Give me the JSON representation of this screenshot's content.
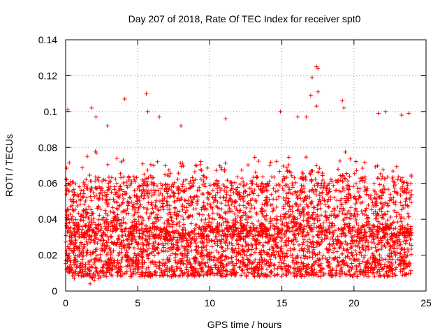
{
  "chart_data": {
    "type": "scatter",
    "title": "Day 207 of 2018, Rate Of TEC Index for receiver spt0",
    "xlabel": "GPS time / hours",
    "ylabel": "ROTI / TECUs",
    "xlim": [
      0,
      25
    ],
    "ylim": [
      0,
      0.14
    ],
    "xticks": [
      0,
      5,
      10,
      15,
      20,
      25
    ],
    "xtick_labels": [
      "0",
      "5",
      "10",
      "15",
      "20",
      "25"
    ],
    "yticks": [
      0,
      0.02,
      0.04,
      0.06,
      0.08,
      0.1,
      0.12,
      0.14
    ],
    "ytick_labels": [
      "0",
      "0.02",
      "0.04",
      "0.06",
      "0.08",
      "0.1",
      "0.12",
      "0.14"
    ],
    "grid": true,
    "marker": "plus",
    "marker_color": "#ff0000",
    "series": [
      {
        "name": "ROTI",
        "x_range": [
          0,
          24
        ],
        "notable_points": [
          {
            "x": 0.15,
            "y": 0.101
          },
          {
            "x": 1.8,
            "y": 0.102
          },
          {
            "x": 2.1,
            "y": 0.097
          },
          {
            "x": 2.9,
            "y": 0.092
          },
          {
            "x": 4.1,
            "y": 0.107
          },
          {
            "x": 5.6,
            "y": 0.11
          },
          {
            "x": 5.7,
            "y": 0.1
          },
          {
            "x": 6.5,
            "y": 0.097
          },
          {
            "x": 8.0,
            "y": 0.092
          },
          {
            "x": 11.1,
            "y": 0.096
          },
          {
            "x": 14.9,
            "y": 0.1
          },
          {
            "x": 16.1,
            "y": 0.097
          },
          {
            "x": 16.7,
            "y": 0.097
          },
          {
            "x": 17.0,
            "y": 0.109
          },
          {
            "x": 17.1,
            "y": 0.119
          },
          {
            "x": 17.4,
            "y": 0.125
          },
          {
            "x": 17.5,
            "y": 0.124
          },
          {
            "x": 17.5,
            "y": 0.111
          },
          {
            "x": 17.4,
            "y": 0.103
          },
          {
            "x": 19.2,
            "y": 0.106
          },
          {
            "x": 19.3,
            "y": 0.102
          },
          {
            "x": 21.7,
            "y": 0.099
          },
          {
            "x": 22.2,
            "y": 0.1
          },
          {
            "x": 23.3,
            "y": 0.098
          },
          {
            "x": 23.8,
            "y": 0.099
          },
          {
            "x": 1.7,
            "y": 0.004
          },
          {
            "x": 0.6,
            "y": 0.007
          }
        ],
        "profile": [
          {
            "x": 0,
            "low": 0.009,
            "mid": 0.03,
            "high": 0.075
          },
          {
            "x": 1,
            "low": 0.008,
            "mid": 0.03,
            "high": 0.07
          },
          {
            "x": 2,
            "low": 0.006,
            "mid": 0.03,
            "high": 0.08
          },
          {
            "x": 3,
            "low": 0.008,
            "mid": 0.03,
            "high": 0.075
          },
          {
            "x": 4,
            "low": 0.008,
            "mid": 0.03,
            "high": 0.075
          },
          {
            "x": 5,
            "low": 0.008,
            "mid": 0.03,
            "high": 0.075
          },
          {
            "x": 6,
            "low": 0.008,
            "mid": 0.03,
            "high": 0.075
          },
          {
            "x": 7,
            "low": 0.008,
            "mid": 0.028,
            "high": 0.07
          },
          {
            "x": 8,
            "low": 0.008,
            "mid": 0.028,
            "high": 0.075
          },
          {
            "x": 9,
            "low": 0.008,
            "mid": 0.028,
            "high": 0.075
          },
          {
            "x": 10,
            "low": 0.009,
            "mid": 0.03,
            "high": 0.07
          },
          {
            "x": 11,
            "low": 0.008,
            "mid": 0.03,
            "high": 0.075
          },
          {
            "x": 12,
            "low": 0.008,
            "mid": 0.03,
            "high": 0.075
          },
          {
            "x": 13,
            "low": 0.008,
            "mid": 0.03,
            "high": 0.075
          },
          {
            "x": 14,
            "low": 0.008,
            "mid": 0.03,
            "high": 0.075
          },
          {
            "x": 15,
            "low": 0.008,
            "mid": 0.03,
            "high": 0.075
          },
          {
            "x": 16,
            "low": 0.008,
            "mid": 0.03,
            "high": 0.075
          },
          {
            "x": 17,
            "low": 0.008,
            "mid": 0.03,
            "high": 0.08
          },
          {
            "x": 18,
            "low": 0.008,
            "mid": 0.03,
            "high": 0.075
          },
          {
            "x": 19,
            "low": 0.008,
            "mid": 0.03,
            "high": 0.08
          },
          {
            "x": 20,
            "low": 0.008,
            "mid": 0.03,
            "high": 0.075
          },
          {
            "x": 21,
            "low": 0.008,
            "mid": 0.03,
            "high": 0.075
          },
          {
            "x": 22,
            "low": 0.008,
            "mid": 0.03,
            "high": 0.075
          },
          {
            "x": 23,
            "low": 0.008,
            "mid": 0.03,
            "high": 0.075
          },
          {
            "x": 24,
            "low": 0.01,
            "mid": 0.03,
            "high": 0.07
          }
        ]
      }
    ]
  }
}
